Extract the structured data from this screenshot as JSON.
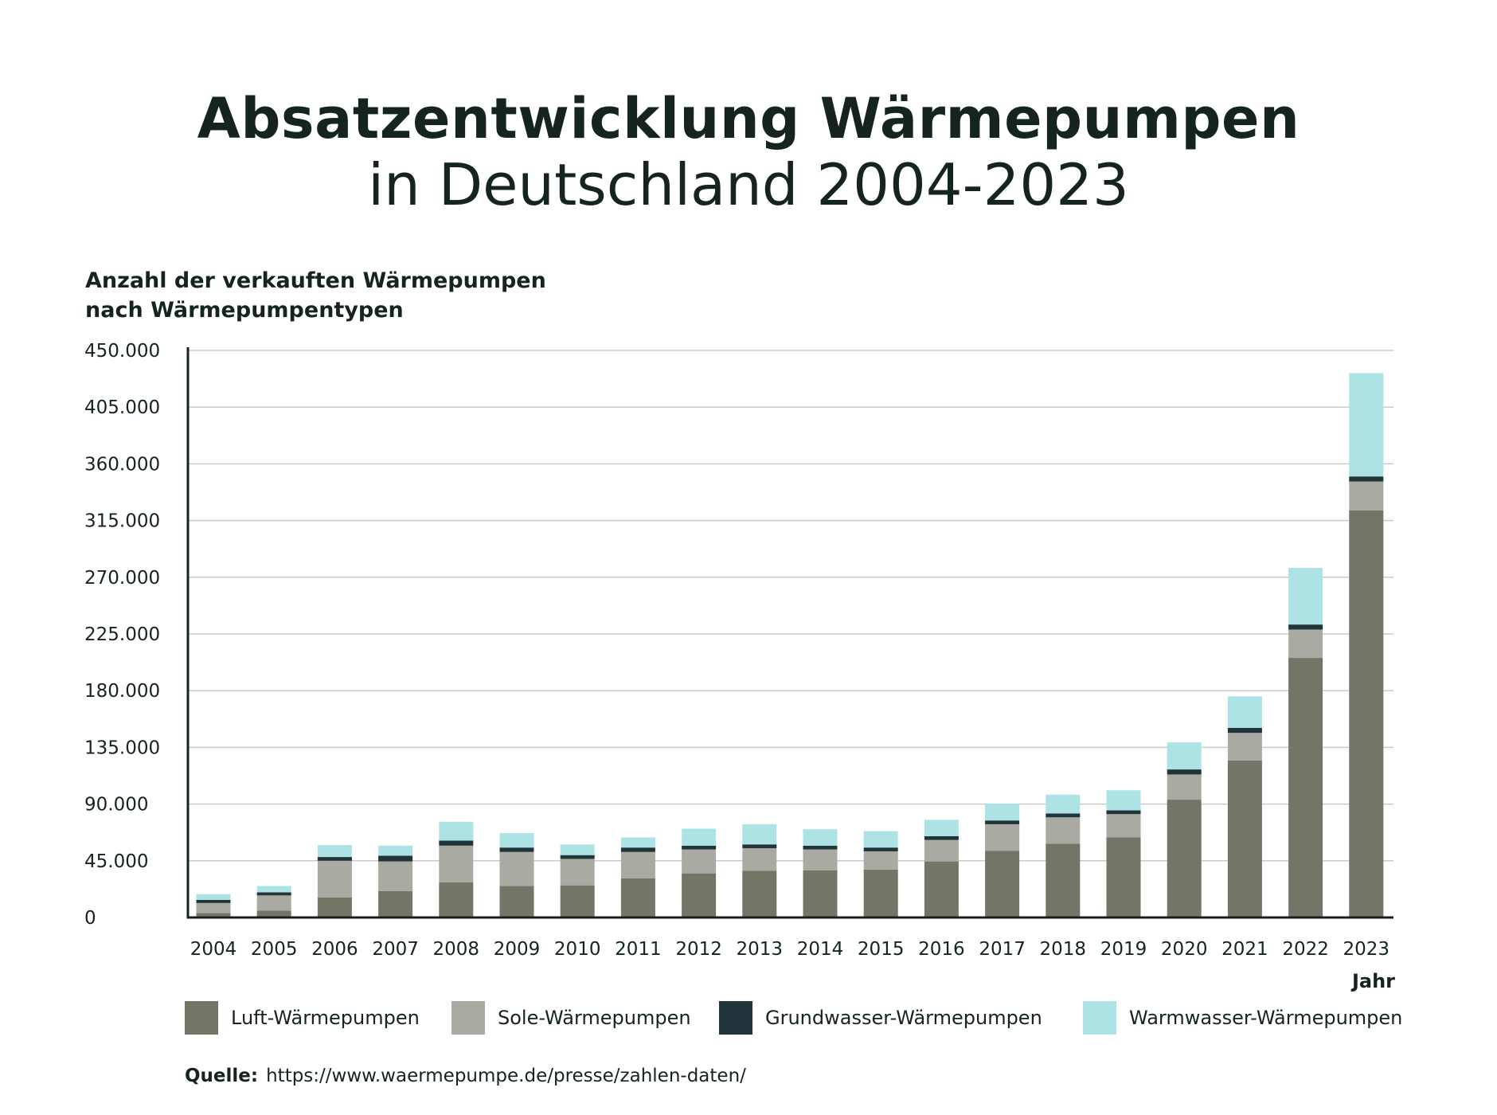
{
  "title": {
    "line1": "Absatzentwicklung Wärmepumpen",
    "line2": "in Deutschland 2004-2023"
  },
  "source": {
    "label": "Quelle:",
    "text": "https://www.waermepumpe.de/presse/zahlen-daten/"
  },
  "chart_data": {
    "type": "bar",
    "stacked": true,
    "ylabel": "Anzahl der verkauften Wärmepumpen nach Wärmepumpentypen",
    "ylabel_lines": [
      "Anzahl der verkauften Wärmepumpen",
      "nach Wärmepumpentypen"
    ],
    "xlabel": "Jahr",
    "ylim": [
      0,
      450000
    ],
    "yticks": [
      0,
      45000,
      90000,
      135000,
      180000,
      225000,
      270000,
      315000,
      360000,
      405000,
      450000
    ],
    "ytick_labels": [
      "0",
      "45.000",
      "90.000",
      "135.000",
      "180.000",
      "225.000",
      "270.000",
      "315.000",
      "360.000",
      "405.000",
      "450.000"
    ],
    "grid": true,
    "legend_position": "bottom",
    "categories": [
      "2004",
      "2005",
      "2006",
      "2007",
      "2008",
      "2009",
      "2010",
      "2011",
      "2012",
      "2013",
      "2014",
      "2015",
      "2016",
      "2017",
      "2018",
      "2019",
      "2020",
      "2021",
      "2022",
      "2023"
    ],
    "series": [
      {
        "name": "Luft-Wärmepumpen",
        "color": "#737567",
        "values": [
          3500,
          5500,
          16000,
          21000,
          28000,
          25000,
          25500,
          31000,
          35000,
          37000,
          37500,
          38000,
          44500,
          53000,
          58500,
          63500,
          93500,
          124500,
          206000,
          323000
        ]
      },
      {
        "name": "Sole-Wärmepumpen",
        "color": "#a9aaa1",
        "values": [
          8000,
          12000,
          29000,
          23500,
          29000,
          27000,
          21000,
          21000,
          19000,
          18000,
          16500,
          14500,
          17000,
          21000,
          21000,
          18500,
          20000,
          22000,
          22500,
          23000
        ]
      },
      {
        "name": "Grundwasser-Wärmepumpen",
        "color": "#203439",
        "values": [
          2500,
          2500,
          3000,
          4500,
          4000,
          3500,
          3000,
          3500,
          3000,
          3000,
          3000,
          3000,
          3000,
          3000,
          3000,
          3000,
          4000,
          4000,
          4000,
          4000
        ]
      },
      {
        "name": "Warmwasser-Wärmepumpen",
        "color": "#aee3e6",
        "values": [
          4500,
          5000,
          9500,
          8000,
          15000,
          11500,
          8500,
          8000,
          13500,
          16000,
          13000,
          13000,
          13000,
          13500,
          15000,
          16000,
          21500,
          25000,
          45000,
          82000
        ]
      }
    ]
  }
}
